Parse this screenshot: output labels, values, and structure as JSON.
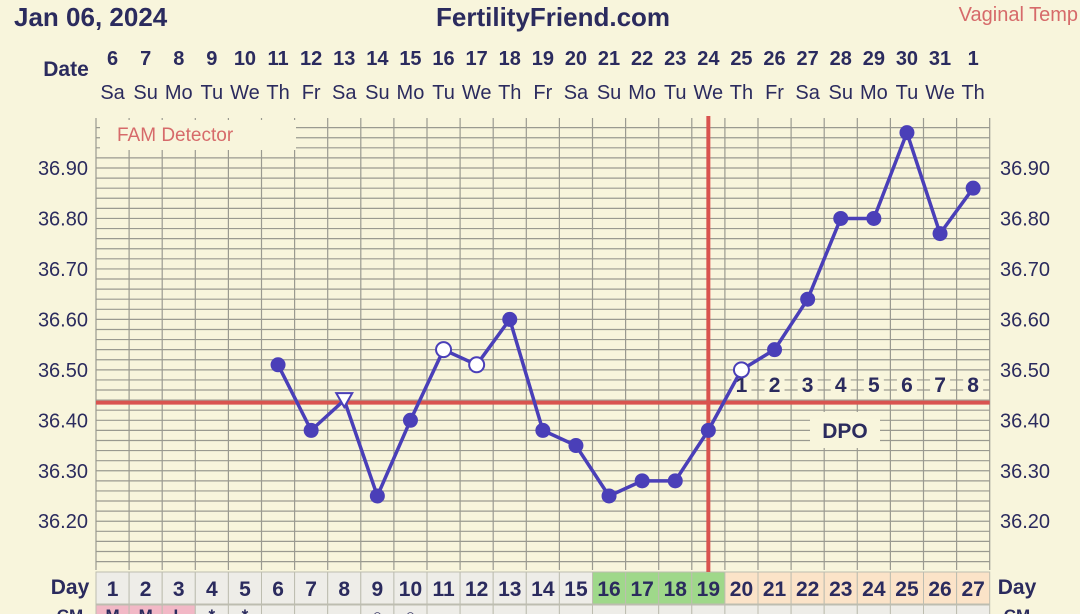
{
  "header": {
    "date": "Jan 06, 2024",
    "site": "FertilityFriend.com",
    "temp_type": "Vaginal Temp"
  },
  "labels": {
    "date_row": "Date",
    "day_row": "Day",
    "detector": "FAM Detector",
    "dpo": "DPO",
    "bottom_row": "CM"
  },
  "colors": {
    "line": "#4a3fb8",
    "coverline": "#d9534f",
    "fertile": "#9fd88a",
    "luteal": "#fbe3c8",
    "period": "#f2b8c6",
    "background": "#f8f5dc",
    "grid": "#9a9a90"
  },
  "chart_data": {
    "type": "line",
    "dates": [
      "6",
      "7",
      "8",
      "9",
      "10",
      "11",
      "12",
      "13",
      "14",
      "15",
      "16",
      "17",
      "18",
      "19",
      "20",
      "21",
      "22",
      "23",
      "24",
      "25",
      "26",
      "27",
      "28",
      "29",
      "30",
      "31",
      "1"
    ],
    "weekdays": [
      "Sa",
      "Su",
      "Mo",
      "Tu",
      "We",
      "Th",
      "Fr",
      "Sa",
      "Su",
      "Mo",
      "Tu",
      "We",
      "Th",
      "Fr",
      "Sa",
      "Su",
      "Mo",
      "Tu",
      "We",
      "Th",
      "Fr",
      "Sa",
      "Su",
      "Mo",
      "Tu",
      "We",
      "Th"
    ],
    "cycle_days": [
      1,
      2,
      3,
      4,
      5,
      6,
      7,
      8,
      9,
      10,
      11,
      12,
      13,
      14,
      15,
      16,
      17,
      18,
      19,
      20,
      21,
      22,
      23,
      24,
      25,
      26,
      27
    ],
    "fertile_days": [
      16,
      17,
      18,
      19
    ],
    "luteal_days": [
      20,
      21,
      22,
      23,
      24,
      25,
      26,
      27
    ],
    "period_days": [
      1,
      2,
      3
    ],
    "temperatures": [
      null,
      null,
      null,
      null,
      null,
      36.51,
      36.38,
      36.44,
      36.25,
      36.4,
      36.54,
      36.51,
      36.6,
      36.38,
      36.35,
      36.25,
      36.28,
      36.28,
      36.38,
      36.5,
      36.54,
      36.64,
      36.8,
      36.8,
      36.97,
      36.77,
      36.86
    ],
    "markers": [
      "",
      "",
      "",
      "",
      "",
      "filled",
      "filled",
      "triangle",
      "filled",
      "filled",
      "open",
      "open",
      "filled",
      "filled",
      "filled",
      "filled",
      "filled",
      "filled",
      "filled",
      "open",
      "filled",
      "filled",
      "filled",
      "filled",
      "filled",
      "filled",
      "filled"
    ],
    "coverline": 36.435,
    "ovulation_day": 19,
    "dpo_numbers": [
      "1",
      "2",
      "3",
      "4",
      "5",
      "6",
      "7",
      "8"
    ],
    "y_ticks": [
      "36.90",
      "36.80",
      "36.70",
      "36.60",
      "36.50",
      "36.40",
      "36.30",
      "36.20"
    ],
    "y_tick_values": [
      36.9,
      36.8,
      36.7,
      36.6,
      36.5,
      36.4,
      36.3,
      36.2
    ],
    "ylim": [
      36.13,
      36.99
    ],
    "bottom_symbols": [
      "M",
      "M",
      "L",
      "*",
      "*",
      "",
      "",
      "",
      "○",
      "○",
      "",
      "",
      "",
      "",
      "",
      "",
      "",
      "",
      "",
      "",
      "",
      "",
      "",
      "",
      "",
      "",
      ""
    ],
    "grid": true
  }
}
